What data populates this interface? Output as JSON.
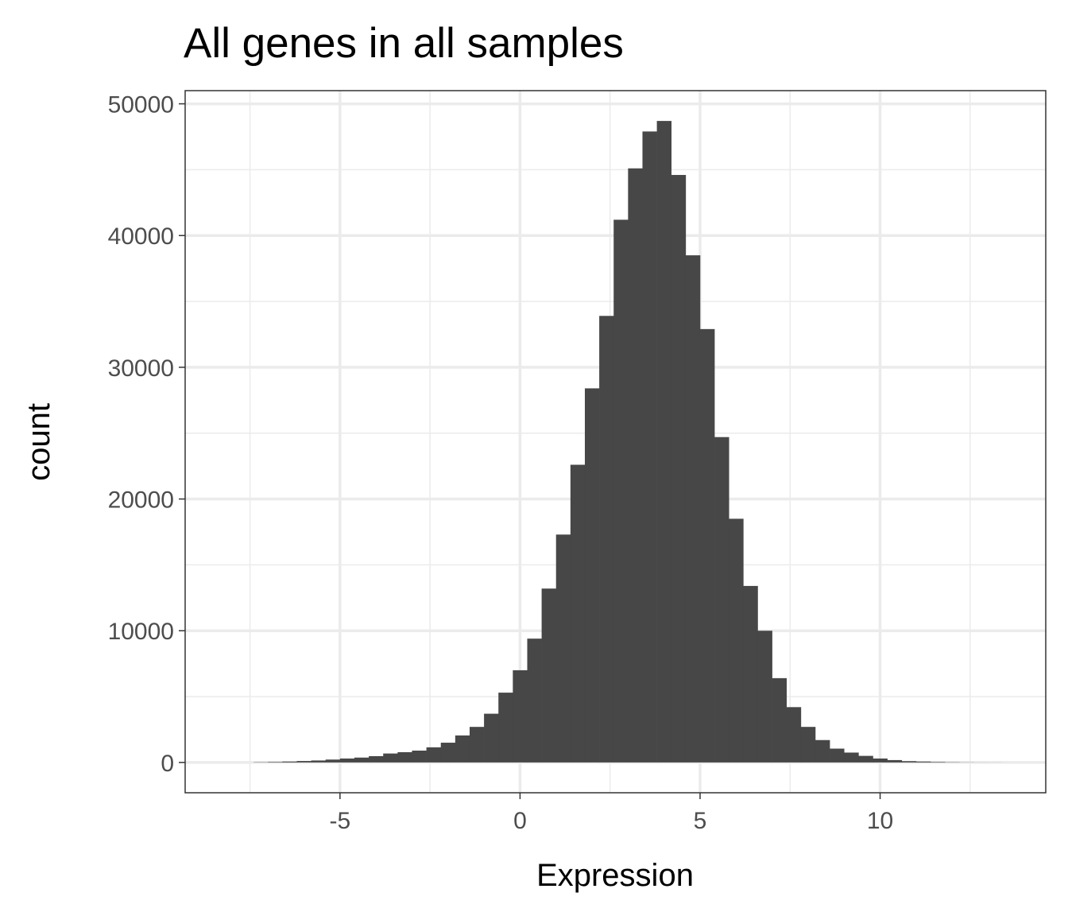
{
  "chart_data": {
    "type": "bar",
    "subtype": "histogram",
    "title": "All genes in all samples",
    "xlabel": "Expression",
    "ylabel": "count",
    "bin_width": 0.4,
    "xlim": [
      -9.3,
      14.6
    ],
    "ylim": [
      -2300,
      51000
    ],
    "xticks": [
      -5,
      0,
      5,
      10
    ],
    "xtick_labels": [
      "-5",
      "0",
      "5",
      "10"
    ],
    "yticks": [
      0,
      10000,
      20000,
      30000,
      40000,
      50000
    ],
    "ytick_labels": [
      "0",
      "10000",
      "20000",
      "30000",
      "40000",
      "50000"
    ],
    "grid": true,
    "bar_color": "#474747",
    "bin_centers": [
      -7.2,
      -6.8,
      -6.4,
      -6.0,
      -5.6,
      -5.2,
      -4.8,
      -4.4,
      -4.0,
      -3.6,
      -3.2,
      -2.8,
      -2.4,
      -2.0,
      -1.6,
      -1.2,
      -0.8,
      -0.4,
      0.0,
      0.4,
      0.8,
      1.2,
      1.6,
      2.0,
      2.4,
      2.8,
      3.2,
      3.6,
      4.0,
      4.4,
      4.8,
      5.2,
      5.6,
      6.0,
      6.4,
      6.8,
      7.2,
      7.6,
      8.0,
      8.4,
      8.8,
      9.2,
      9.6,
      10.0,
      10.4,
      10.8,
      11.2,
      11.6,
      12.0,
      12.4,
      12.8,
      13.2
    ],
    "values": [
      20,
      40,
      70,
      110,
      150,
      220,
      300,
      370,
      480,
      680,
      780,
      900,
      1150,
      1500,
      2050,
      2700,
      3700,
      5300,
      7000,
      9400,
      13200,
      17300,
      22600,
      28400,
      33900,
      41200,
      45100,
      47900,
      48700,
      44600,
      38500,
      32900,
      24700,
      18500,
      13400,
      10000,
      6400,
      4200,
      2700,
      1700,
      1050,
      750,
      500,
      300,
      180,
      100,
      70,
      40,
      20,
      10,
      5,
      3
    ]
  }
}
